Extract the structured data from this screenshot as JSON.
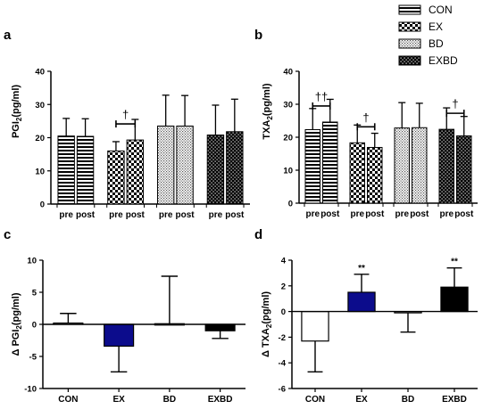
{
  "colors": {
    "ex_bar": "#0c0c8c",
    "exbd_bar": "#000000",
    "axis": "#000000"
  },
  "legend": {
    "items": [
      {
        "label": "CON",
        "pattern": "hstripe"
      },
      {
        "label": "EX",
        "pattern": "checker"
      },
      {
        "label": "BD",
        "pattern": "dots"
      },
      {
        "label": "EXBD",
        "pattern": "darkdots"
      }
    ]
  },
  "chart_data": [
    {
      "panel": "a",
      "type": "bar",
      "ylabel_main": "PGI",
      "ylabel_sub": "2",
      "ylabel_unit": "(pg/ml)",
      "ylim": [
        0,
        40
      ],
      "yticks": [
        0,
        10,
        20,
        30,
        40
      ],
      "x_tick_labels": [
        "pre",
        "post"
      ],
      "groups": [
        {
          "group": "CON",
          "pattern": "hstripe",
          "values": [
            20.5,
            20.4
          ],
          "errors": [
            5.3,
            5.3
          ]
        },
        {
          "group": "EX",
          "pattern": "checker",
          "values": [
            16.0,
            19.3
          ],
          "errors": [
            2.8,
            6.2
          ]
        },
        {
          "group": "BD",
          "pattern": "dots",
          "values": [
            23.5,
            23.5
          ],
          "errors": [
            9.3,
            9.2
          ]
        },
        {
          "group": "EXBD",
          "pattern": "darkdots",
          "values": [
            20.8,
            21.8
          ],
          "errors": [
            9.0,
            9.8
          ]
        }
      ],
      "annotations": [
        {
          "text": "†",
          "group": "EX"
        }
      ]
    },
    {
      "panel": "b",
      "type": "bar",
      "ylabel_main": "TXA",
      "ylabel_sub": "2",
      "ylabel_unit": "(pg/ml)",
      "ylim": [
        0,
        40
      ],
      "yticks": [
        0,
        10,
        20,
        30,
        40
      ],
      "x_tick_labels": [
        "pre",
        "post"
      ],
      "groups": [
        {
          "group": "CON",
          "pattern": "hstripe",
          "values": [
            22.3,
            24.6
          ],
          "errors": [
            6.4,
            6.9
          ]
        },
        {
          "group": "EX",
          "pattern": "checker",
          "values": [
            18.3,
            16.9
          ],
          "errors": [
            5.4,
            4.3
          ]
        },
        {
          "group": "BD",
          "pattern": "dots",
          "values": [
            22.8,
            22.9
          ],
          "errors": [
            7.7,
            7.4
          ]
        },
        {
          "group": "EXBD",
          "pattern": "darkdots",
          "values": [
            22.4,
            20.4
          ],
          "errors": [
            6.5,
            5.9
          ]
        }
      ],
      "annotations": [
        {
          "text": "††",
          "group": "CON"
        },
        {
          "text": "†",
          "group": "EX"
        },
        {
          "text": "†",
          "group": "EXBD"
        }
      ]
    },
    {
      "panel": "c",
      "type": "bar",
      "ylabel_prefix": "Δ",
      "ylabel_main": "PGI",
      "ylabel_sub": "2",
      "ylabel_unit": "(pg/ml)",
      "ylim": [
        -10,
        10
      ],
      "yticks": [
        -10,
        -5,
        0,
        5,
        10
      ],
      "categories": [
        "CON",
        "EX",
        "BD",
        "EXBD"
      ],
      "values": [
        0.2,
        -3.4,
        0.1,
        -1.0
      ],
      "errors": [
        1.5,
        4.0,
        7.4,
        1.2
      ],
      "error_direction": [
        "up",
        "down",
        "up",
        "down"
      ],
      "fills": [
        "#ffffff",
        "#0c0c8c",
        "#ffffff",
        "#000000"
      ],
      "annotations": []
    },
    {
      "panel": "d",
      "type": "bar",
      "ylabel_prefix": "Δ",
      "ylabel_main": "TXA",
      "ylabel_sub": "2",
      "ylabel_unit": "(pg/ml)",
      "ylim": [
        -6,
        4
      ],
      "yticks": [
        -6,
        -4,
        -2,
        0,
        2,
        4
      ],
      "categories": [
        "CON",
        "EX",
        "BD",
        "EXBD"
      ],
      "values": [
        -2.3,
        1.5,
        -0.1,
        1.9
      ],
      "errors": [
        2.4,
        1.4,
        1.5,
        1.5
      ],
      "error_direction": [
        "down",
        "up",
        "down",
        "up"
      ],
      "fills": [
        "#ffffff",
        "#0c0c8c",
        "#ffffff",
        "#000000"
      ],
      "annotations": [
        {
          "text": "**",
          "category": "EX"
        },
        {
          "text": "**",
          "category": "EXBD"
        }
      ]
    }
  ]
}
